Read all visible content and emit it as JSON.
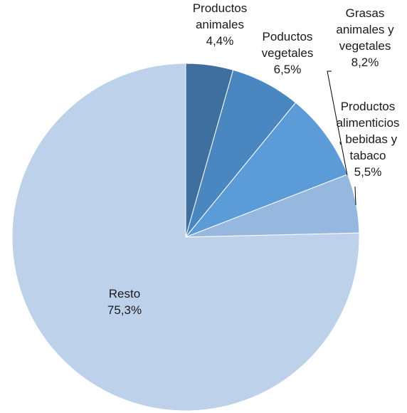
{
  "chart_data": {
    "type": "pie",
    "slices": [
      {
        "label_lines": [
          "Productos",
          "animales"
        ],
        "value_text": "4,4%",
        "value": 4.4,
        "color": "#3f6f9f"
      },
      {
        "label_lines": [
          "Poductos",
          "vegetales"
        ],
        "value_text": "6,5%",
        "value": 6.5,
        "color": "#4a86c0"
      },
      {
        "label_lines": [
          "Grasas",
          "animales y",
          "vegetales"
        ],
        "value_text": "8,2%",
        "value": 8.2,
        "color": "#5b9bd8"
      },
      {
        "label_lines": [
          "Productos",
          "alimenticios",
          ", bebidas y",
          "tabaco"
        ],
        "value_text": "5,5%",
        "value": 5.5,
        "color": "#96b8df"
      },
      {
        "label_lines": [
          "Resto"
        ],
        "value_text": "75,3%",
        "value": 75.3,
        "color": "#bdd1ea"
      }
    ],
    "start_angle_deg": 0,
    "direction": "clockwise",
    "legend": "none"
  }
}
